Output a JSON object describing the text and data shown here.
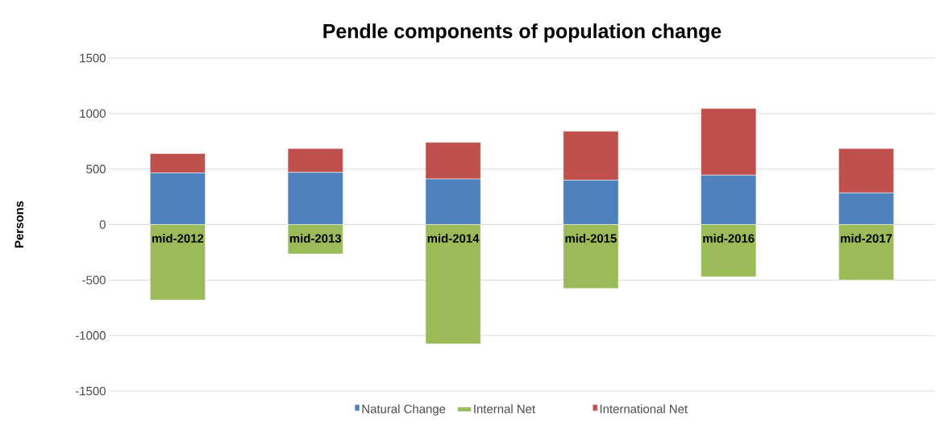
{
  "chart_data": {
    "type": "bar",
    "title": "Pendle components of population change",
    "ylabel": "Persons",
    "categories": [
      "mid-2012",
      "mid-2013",
      "mid-2014",
      "mid-2015",
      "mid-2016",
      "mid-2017"
    ],
    "series": [
      {
        "name": "Natural Change",
        "color": "#4f81bd",
        "values": [
          465,
          470,
          410,
          400,
          445,
          285
        ]
      },
      {
        "name": "Internal Net",
        "color": "#9bbb59",
        "values": [
          -680,
          -265,
          -1075,
          -575,
          -470,
          -500
        ]
      },
      {
        "name": "International Net",
        "color": "#c0504d",
        "values": [
          175,
          215,
          330,
          440,
          600,
          400
        ]
      }
    ],
    "stacked": true,
    "ylim": [
      -1500,
      1500
    ],
    "yticks": [
      -1500,
      -1000,
      -500,
      0,
      500,
      1000,
      1500
    ],
    "grid": "y",
    "legend": "bottom"
  }
}
